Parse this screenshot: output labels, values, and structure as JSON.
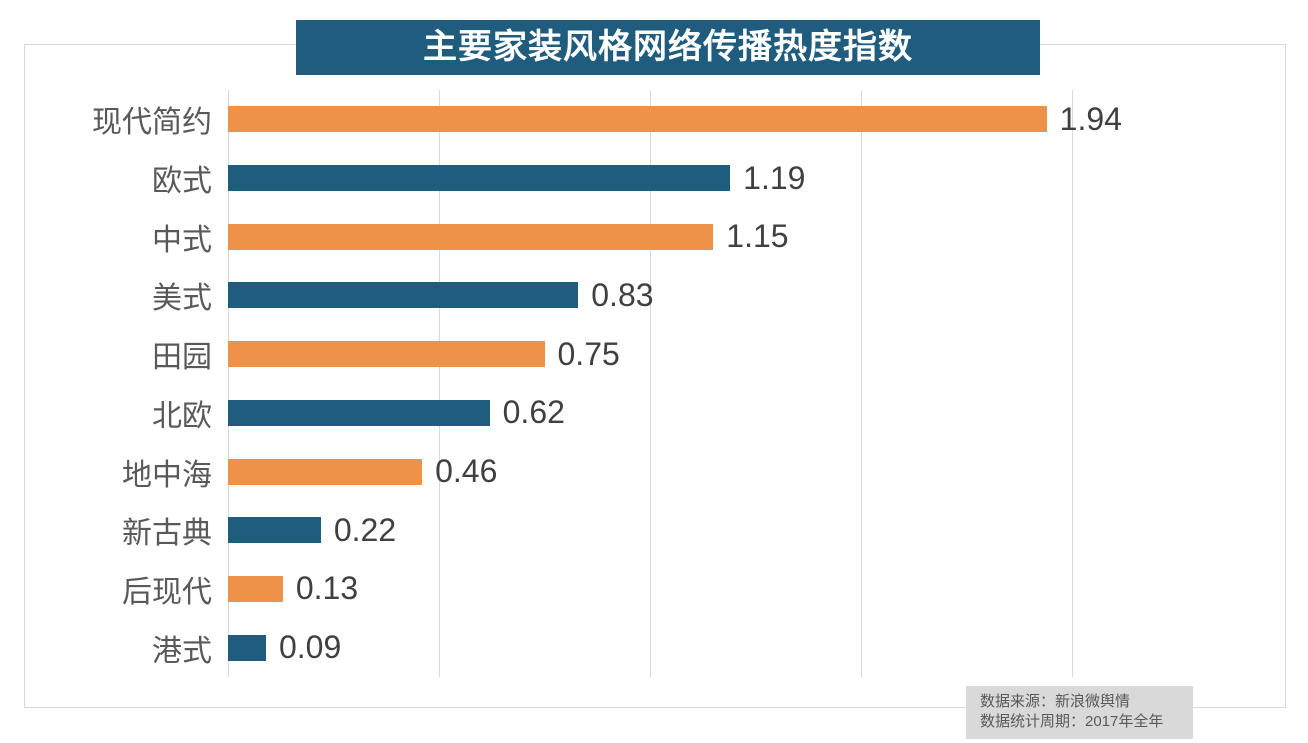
{
  "chart": {
    "title": "主要家装风格网络传播热度指数"
  },
  "chart_data": {
    "type": "bar",
    "orientation": "horizontal",
    "title": "主要家装风格网络传播热度指数",
    "categories": [
      "现代简约",
      "欧式",
      "中式",
      "美式",
      "田园",
      "北欧",
      "地中海",
      "新古典",
      "后现代",
      "港式"
    ],
    "values": [
      1.94,
      1.19,
      1.15,
      0.83,
      0.75,
      0.62,
      0.46,
      0.22,
      0.13,
      0.09
    ],
    "bar_colors": [
      "#EF9249",
      "#1F5C7E",
      "#EF9249",
      "#1F5C7E",
      "#EF9249",
      "#1F5C7E",
      "#EF9249",
      "#1F5C7E",
      "#EF9249",
      "#1F5C7E"
    ],
    "xlabel": "",
    "ylabel": "",
    "xlim": [
      0,
      2.0
    ],
    "gridline_step": 0.5,
    "grid": "vertical-only",
    "legend": "none",
    "data_labels": true
  },
  "colors": {
    "banner_bg": "#1F5C7E",
    "banner_text": "#ffffff",
    "bar_orange": "#EF9249",
    "bar_blue": "#1F5C7E",
    "gridline": "#d9d9d9",
    "frame_border": "#d9d9d9",
    "category_text": "#595959",
    "value_text": "#404040",
    "source_bg": "#d9d9d9",
    "source_text": "#595959"
  },
  "footer": {
    "source_line": "数据来源：新浪微舆情",
    "period_line": "数据统计周期：2017年全年"
  }
}
